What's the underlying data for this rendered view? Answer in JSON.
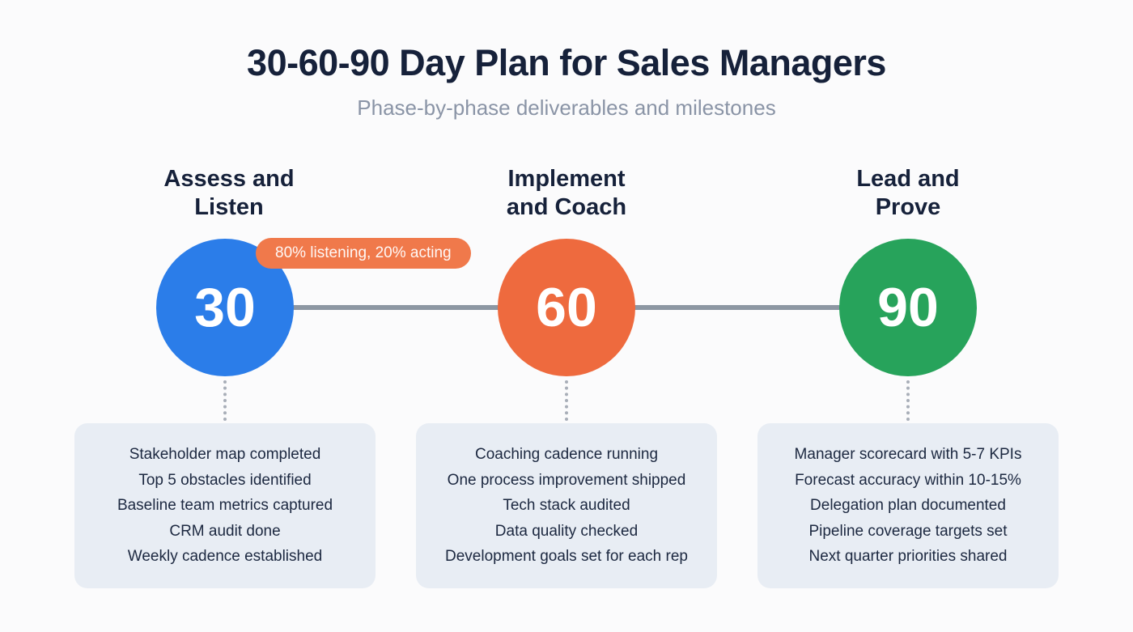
{
  "header": {
    "title": "30-60-90 Day Plan for Sales Managers",
    "subtitle": "Phase-by-phase deliverables and milestones"
  },
  "badge": {
    "text": "80% listening, 20% acting",
    "color": "#F0794B"
  },
  "timeline": {
    "connector_color": "#8D97A3",
    "dotted_connector_color": "#A8AEB8"
  },
  "colors": {
    "background": "#FBFBFC",
    "title_text": "#16213A",
    "subtitle_text": "#8A94A6",
    "card_background": "#E8EDF4",
    "card_text": "#1C2840",
    "phase_30_circle": "#2B7DE9",
    "phase_60_circle": "#EE6A3E",
    "phase_90_circle": "#27A35B"
  },
  "phases": [
    {
      "day": "30",
      "title_line1": "Assess and",
      "title_line2": "Listen",
      "circle_color": "#2B7DE9",
      "items": [
        "Stakeholder map completed",
        "Top 5 obstacles identified",
        "Baseline team metrics captured",
        "CRM audit done",
        "Weekly cadence established"
      ]
    },
    {
      "day": "60",
      "title_line1": "Implement",
      "title_line2": "and Coach",
      "circle_color": "#EE6A3E",
      "items": [
        "Coaching cadence running",
        "One process improvement shipped",
        "Tech stack audited",
        "Data quality checked",
        "Development goals set for each rep"
      ]
    },
    {
      "day": "90",
      "title_line1": "Lead and",
      "title_line2": "Prove",
      "circle_color": "#27A35B",
      "items": [
        "Manager scorecard with 5-7 KPIs",
        "Forecast accuracy within 10-15%",
        "Delegation plan documented",
        "Pipeline coverage targets set",
        "Next quarter priorities shared"
      ]
    }
  ]
}
